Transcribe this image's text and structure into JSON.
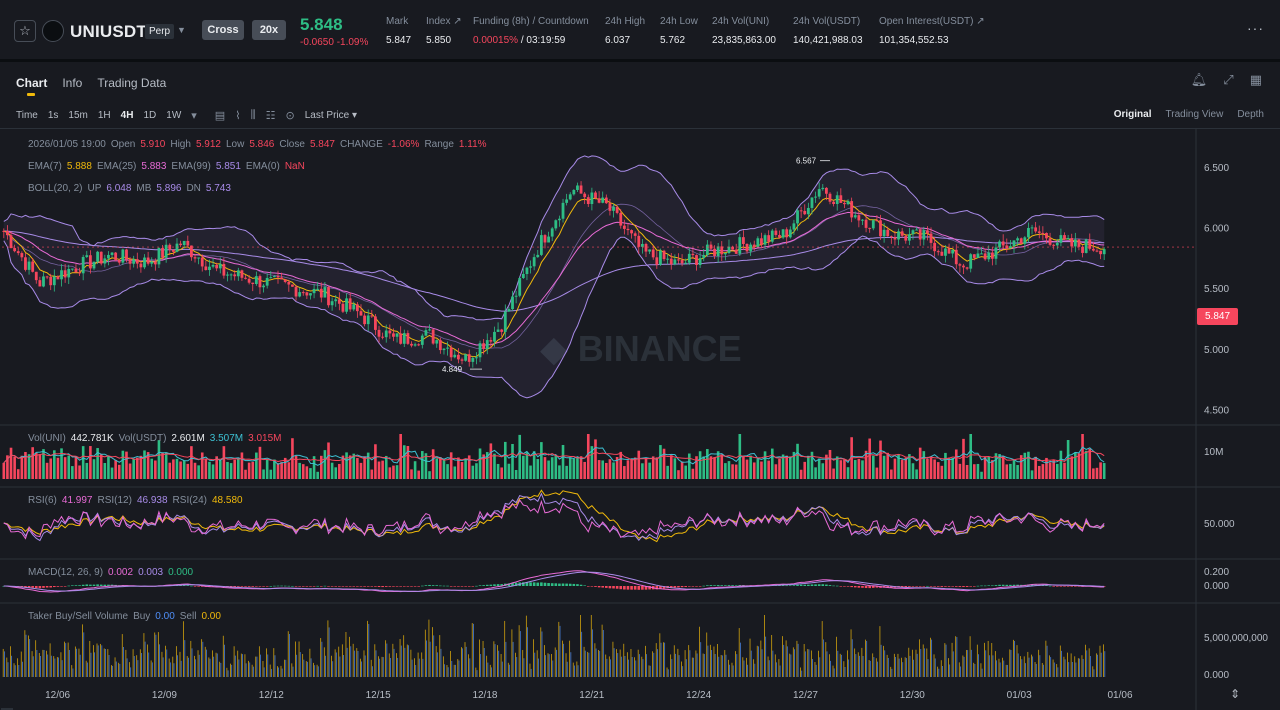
{
  "header": {
    "symbol": "UNIUSDT",
    "contract_type": "Perp",
    "margin_mode": "Cross",
    "leverage": "20x",
    "last_price": "5.848",
    "change": "-0.0650",
    "change_pct": "-1.09%",
    "stats": [
      {
        "label": "Mark",
        "value": "5.847"
      },
      {
        "label": "Index ↗",
        "value": "5.850"
      },
      {
        "label": "Funding (8h) / Countdown",
        "value_a": "0.00015%",
        "value_b": "/ 03:19:59"
      },
      {
        "label": "24h High",
        "value": "6.037"
      },
      {
        "label": "24h Low",
        "value": "5.762"
      },
      {
        "label": "24h Vol(UNI)",
        "value": "23,835,863.00"
      },
      {
        "label": "24h Vol(USDT)",
        "value": "140,421,988.03"
      },
      {
        "label": "Open Interest(USDT) ↗",
        "value": "101,354,552.53"
      }
    ],
    "more": "···"
  },
  "tabs": [
    "Chart",
    "Info",
    "Trading Data"
  ],
  "toolbar": {
    "intervals": [
      "Time",
      "1s",
      "15m",
      "1H",
      "4H",
      "1D",
      "1W"
    ],
    "active_interval": "4H",
    "price_type": "Last Price ▾",
    "view_options": [
      "Original",
      "Trading View",
      "Depth"
    ],
    "active_view": "Original"
  },
  "icons": {
    "star": "star-icon",
    "bell": "bell-icon",
    "expand": "expand-icon",
    "grid": "layout-icon",
    "interval_dropdown": "chevron-down-icon",
    "calendar": "calendar-icon",
    "indicator": "indicator-icon",
    "candle": "candle-type-icon",
    "settings": "settings-icon",
    "target": "target-icon",
    "collapse": "collapse-icon",
    "expander": "chevron-right-icon"
  },
  "legend": {
    "ohlc": {
      "date": "2026/01/05 19:00",
      "open_label": "Open",
      "open": "5.910",
      "high_label": "High",
      "high": "5.912",
      "low_label": "Low",
      "low": "5.846",
      "close_label": "Close",
      "close": "5.847",
      "change_label": "CHANGE",
      "change": "-1.06%",
      "range_label": "Range",
      "range": "1.11%"
    },
    "ema": {
      "ema7_label": "EMA(7)",
      "ema7": "5.888",
      "ema25_label": "EMA(25)",
      "ema25": "5.883",
      "ema99_label": "EMA(99)",
      "ema99": "5.851",
      "ema0_label": "EMA(0)",
      "ema0": "NaN"
    },
    "boll": {
      "label": "BOLL(20, 2)",
      "up_label": "UP",
      "up": "6.048",
      "mb_label": "MB",
      "mb": "5.896",
      "dn_label": "DN",
      "dn": "5.743"
    },
    "vol": {
      "label": "Vol(UNI)",
      "value": "442.781K",
      "usdt_label": "Vol(USDT)",
      "usdt": "2.601M",
      "ma1": "3.507M",
      "ma2": "3.015M"
    },
    "rsi": {
      "rsi6_label": "RSI(6)",
      "rsi6": "41.997",
      "rsi12_label": "RSI(12)",
      "rsi12": "46.938",
      "rsi24_label": "RSI(24)",
      "rsi24": "48.580"
    },
    "macd": {
      "label": "MACD(12, 26, 9)",
      "v1": "0.002",
      "v2": "0.003",
      "v3": "0.000"
    },
    "taker": {
      "label": "Taker Buy/Sell Volume",
      "buy_label": "Buy",
      "buy": "0.00",
      "sell_label": "Sell",
      "sell": "0.00"
    }
  },
  "current_price_tag": "5.847",
  "colors": {
    "up": "#2ebd85",
    "down": "#f6465d",
    "ema7": "#f0b90b",
    "ema25": "#e86bd6",
    "ema99": "#a88be8",
    "boll": "#a88be8",
    "background": "#181a20",
    "accent": "#f0b90b"
  },
  "chart_data": {
    "type": "candlestick",
    "symbol": "UNIUSDT",
    "interval": "4H",
    "x_tick_labels": [
      "12/06",
      "12/09",
      "12/12",
      "12/15",
      "12/18",
      "12/21",
      "12/24",
      "12/27",
      "12/30",
      "01/03",
      "01/06"
    ],
    "price_axis": {
      "ticks": [
        "6.500",
        "6.000",
        "5.500",
        "5.000",
        "4.500"
      ],
      "ylim": [
        4.38,
        6.82
      ]
    },
    "annotations": {
      "high_label": "6.567",
      "low_label": "4.849",
      "last": "5.847"
    },
    "anchors": [
      {
        "x": "12/05",
        "price": 5.98
      },
      {
        "x": "12/06",
        "price": 5.55
      },
      {
        "x": "12/07",
        "price": 5.68
      },
      {
        "x": "12/08",
        "price": 5.78
      },
      {
        "x": "12/09",
        "price": 5.72
      },
      {
        "x": "12/10",
        "price": 5.88
      },
      {
        "x": "12/11",
        "price": 5.65
      },
      {
        "x": "12/12",
        "price": 5.58
      },
      {
        "x": "12/13",
        "price": 5.52
      },
      {
        "x": "12/14",
        "price": 5.46
      },
      {
        "x": "12/15",
        "price": 5.3
      },
      {
        "x": "12/16",
        "price": 5.08
      },
      {
        "x": "12/17",
        "price": 5.12
      },
      {
        "x": "12/18",
        "price": 4.92
      },
      {
        "x": "12/19",
        "price": 5.2
      },
      {
        "x": "12/20",
        "price": 5.82
      },
      {
        "x": "12/21",
        "price": 6.32
      },
      {
        "x": "12/22",
        "price": 6.18
      },
      {
        "x": "12/23",
        "price": 5.8
      },
      {
        "x": "12/24",
        "price": 5.7
      },
      {
        "x": "12/25",
        "price": 5.82
      },
      {
        "x": "12/26",
        "price": 5.88
      },
      {
        "x": "12/27",
        "price": 5.95
      },
      {
        "x": "12/28",
        "price": 6.35
      },
      {
        "x": "12/29",
        "price": 6.12
      },
      {
        "x": "12/30",
        "price": 5.95
      },
      {
        "x": "12/31",
        "price": 5.92
      },
      {
        "x": "01/01",
        "price": 5.7
      },
      {
        "x": "01/02",
        "price": 5.82
      },
      {
        "x": "01/03",
        "price": 5.98
      },
      {
        "x": "01/04",
        "price": 5.86
      },
      {
        "x": "01/05",
        "price": 5.85
      }
    ],
    "volume_axis": {
      "ticks": [
        "10M"
      ]
    },
    "rsi_axis": {
      "ticks": [
        "50.000"
      ]
    },
    "macd_axis": {
      "ticks": [
        "0.200",
        "0.000"
      ]
    },
    "taker_axis": {
      "ticks": [
        "5,000,000,000",
        "0.000"
      ]
    }
  }
}
